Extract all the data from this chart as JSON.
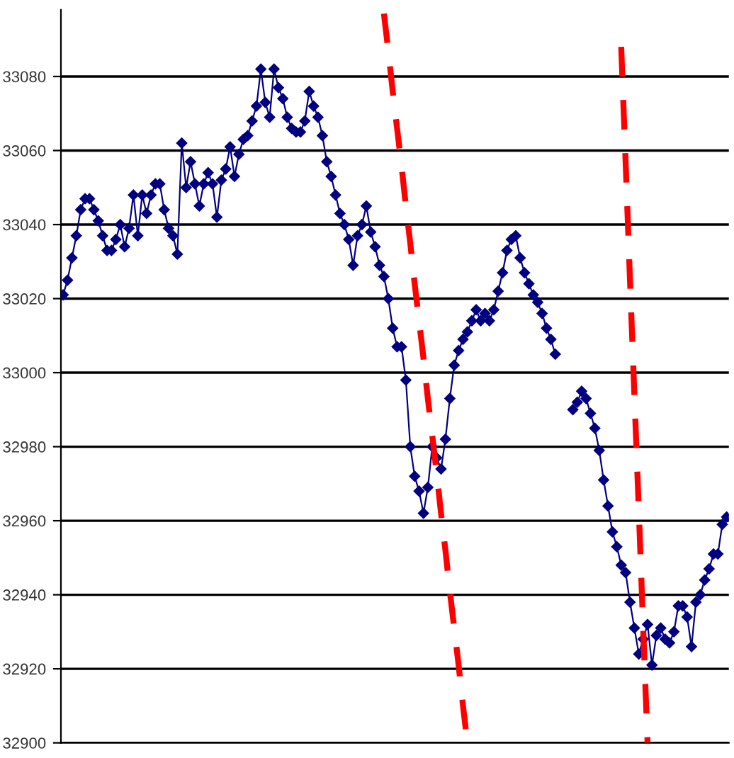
{
  "chart_data": {
    "type": "line",
    "ylim": [
      32900,
      33098
    ],
    "yticks": [
      32900,
      32920,
      32940,
      32960,
      32980,
      33000,
      33020,
      33040,
      33060,
      33080
    ],
    "grid": "y",
    "marker": "diamond",
    "line_style": "solid",
    "tick_labels": "y",
    "categories": [
      null,
      null,
      null,
      null,
      null,
      null,
      null,
      null,
      null,
      null,
      null,
      null,
      null,
      null,
      null,
      null,
      null,
      null,
      null,
      null,
      null,
      null,
      null,
      null,
      null,
      null,
      null,
      null,
      null,
      null,
      null,
      null,
      null,
      null,
      null,
      null,
      null,
      null,
      null,
      null,
      null,
      null,
      null,
      null,
      null,
      null,
      null,
      null,
      null,
      null,
      null,
      null,
      null,
      null,
      null,
      null,
      null,
      null,
      null,
      null,
      null,
      null,
      null,
      null,
      null,
      null,
      null,
      null,
      null,
      null,
      null,
      null,
      null,
      null,
      null,
      null,
      null,
      null,
      null,
      null,
      null,
      null,
      null,
      null,
      null,
      null,
      null,
      null,
      null,
      null,
      null,
      null,
      null,
      null,
      null,
      null,
      null,
      null,
      null,
      null,
      null,
      null,
      null,
      null,
      null,
      null,
      null,
      null,
      null,
      null,
      null,
      null,
      null,
      null,
      null,
      null,
      null,
      null,
      null,
      null,
      null,
      null,
      null,
      null,
      null,
      null,
      null,
      null,
      null,
      null,
      null,
      null,
      null,
      null,
      null,
      null,
      null,
      null,
      null,
      null,
      null,
      null,
      null,
      null,
      null,
      null,
      null,
      null,
      null,
      null,
      null,
      null
    ],
    "series": [
      {
        "color": "#000080",
        "values": [
          33021,
          33025,
          33031,
          33037,
          33044,
          33047,
          33047,
          33044,
          33041,
          33037,
          33033,
          33033,
          33036,
          33040,
          33034,
          33039,
          33048,
          33037,
          33048,
          33043,
          33048,
          33051,
          33051,
          33044,
          33039,
          33037,
          33032,
          33062,
          33050,
          33057,
          33051,
          33045,
          33051,
          33054,
          33051,
          33042,
          33052,
          33055,
          33061,
          33053,
          33059,
          33063,
          33064,
          33068,
          33072,
          33082,
          33073,
          33069,
          33082,
          33077,
          33074,
          33069,
          33066,
          33065,
          33065,
          33068,
          33076,
          33072,
          33069,
          33064,
          33057,
          33053,
          33048,
          33043,
          33040,
          33036,
          33029,
          33037,
          33040,
          33045,
          33038,
          33034,
          33029,
          33026,
          33020,
          33012,
          33007,
          33007,
          32998,
          32980,
          32972,
          32968,
          32962,
          32969,
          32980,
          32977,
          32974,
          32982,
          32993,
          33002,
          33006,
          33009,
          33011,
          33014,
          33017,
          33014,
          33016,
          33014,
          33017,
          33022,
          33027,
          33033,
          33036,
          33037,
          33031,
          33027,
          33024,
          33021,
          33019,
          33016,
          33012,
          33009,
          33005,
          null,
          null,
          null,
          null,
          null,
          null,
          null,
          null,
          null,
          null,
          null,
          null,
          null,
          null,
          null,
          null,
          null,
          null,
          null,
          null,
          null,
          null,
          null,
          null,
          null,
          null,
          null,
          null,
          null,
          null,
          null,
          null,
          null,
          null,
          null,
          null,
          null,
          null,
          null
        ]
      },
      {
        "color": "#000080",
        "values": [
          null,
          null,
          null,
          null,
          null,
          null,
          null,
          null,
          null,
          null,
          null,
          null,
          null,
          null,
          null,
          null,
          null,
          null,
          null,
          null,
          null,
          null,
          null,
          null,
          null,
          null,
          null,
          null,
          null,
          null,
          null,
          null,
          null,
          null,
          null,
          null,
          null,
          null,
          null,
          null,
          null,
          null,
          null,
          null,
          null,
          null,
          null,
          null,
          null,
          null,
          null,
          null,
          null,
          null,
          null,
          null,
          null,
          null,
          null,
          null,
          null,
          null,
          null,
          null,
          null,
          null,
          null,
          null,
          null,
          null,
          null,
          null,
          null,
          null,
          null,
          null,
          null,
          null,
          null,
          null,
          null,
          null,
          null,
          null,
          null,
          null,
          null,
          null,
          null,
          null,
          null,
          null,
          null,
          null,
          null,
          null,
          null,
          null,
          null,
          null,
          null,
          null,
          null,
          null,
          null,
          null,
          null,
          null,
          null,
          null,
          null,
          null,
          null,
          null,
          null,
          null,
          32990,
          32992,
          32995,
          32993,
          32989,
          32985,
          32979,
          32971,
          32964,
          32957,
          32953,
          32948,
          32946,
          32938,
          32931,
          32924,
          32928,
          32932,
          32921,
          32929,
          32931,
          32928,
          32927,
          32930,
          32937,
          32937,
          32934,
          32926,
          32938,
          32940,
          32944,
          32947,
          32951,
          32951,
          32959,
          32961
        ]
      },
      {
        "type": "line",
        "color": "#ff0000",
        "marker": "none",
        "line_style": "dashed",
        "values": [
          null,
          null,
          null,
          null,
          null,
          null,
          null,
          null,
          null,
          null,
          null,
          null,
          null,
          null,
          null,
          null,
          null,
          null,
          null,
          null,
          null,
          null,
          null,
          null,
          null,
          null,
          null,
          null,
          null,
          null,
          null,
          null,
          null,
          null,
          null,
          null,
          null,
          null,
          null,
          null,
          null,
          null,
          null,
          null,
          null,
          null,
          null,
          null,
          null,
          null,
          null,
          null,
          null,
          null,
          null,
          null,
          null,
          null,
          null,
          null,
          null,
          null,
          null,
          null,
          null,
          null,
          null,
          null,
          null,
          null,
          null,
          null,
          null,
          33097,
          33087,
          33076,
          33066,
          33056,
          33045,
          33035,
          33024,
          33014,
          33004,
          32993,
          32983,
          32973,
          32962,
          32952,
          32941,
          32931,
          32921,
          32910,
          32900,
          null,
          null,
          null,
          null,
          null,
          null,
          null,
          null,
          null,
          null,
          null,
          null,
          null,
          null,
          null,
          null,
          null,
          null,
          null,
          null,
          null,
          null,
          null,
          null,
          null,
          null,
          null,
          null,
          null,
          null,
          null,
          null,
          null,
          null,
          null,
          null,
          null,
          null,
          null,
          null,
          null,
          null,
          null,
          null,
          null,
          null,
          null,
          null,
          null,
          null,
          null,
          null,
          null,
          null,
          null,
          null,
          null,
          null,
          null
        ]
      },
      {
        "type": "line",
        "color": "#ff0000",
        "marker": "none",
        "line_style": "dashed",
        "values": [
          null,
          null,
          null,
          null,
          null,
          null,
          null,
          null,
          null,
          null,
          null,
          null,
          null,
          null,
          null,
          null,
          null,
          null,
          null,
          null,
          null,
          null,
          null,
          null,
          null,
          null,
          null,
          null,
          null,
          null,
          null,
          null,
          null,
          null,
          null,
          null,
          null,
          null,
          null,
          null,
          null,
          null,
          null,
          null,
          null,
          null,
          null,
          null,
          null,
          null,
          null,
          null,
          null,
          null,
          null,
          null,
          null,
          null,
          null,
          null,
          null,
          null,
          null,
          null,
          null,
          null,
          null,
          null,
          null,
          null,
          null,
          null,
          null,
          null,
          null,
          null,
          null,
          null,
          null,
          null,
          null,
          null,
          null,
          null,
          null,
          null,
          null,
          null,
          null,
          null,
          null,
          null,
          null,
          null,
          null,
          null,
          null,
          null,
          null,
          null,
          null,
          null,
          null,
          null,
          null,
          null,
          null,
          null,
          null,
          null,
          null,
          null,
          null,
          null,
          null,
          null,
          null,
          null,
          null,
          null,
          null,
          null,
          null,
          null,
          null,
          null,
          null,
          33088,
          33057,
          33025,
          32994,
          32963,
          32931,
          32900,
          null,
          null,
          null,
          null,
          null,
          null,
          null,
          null,
          null,
          null,
          null,
          null,
          null,
          null,
          null,
          null,
          null,
          null
        ]
      }
    ]
  }
}
